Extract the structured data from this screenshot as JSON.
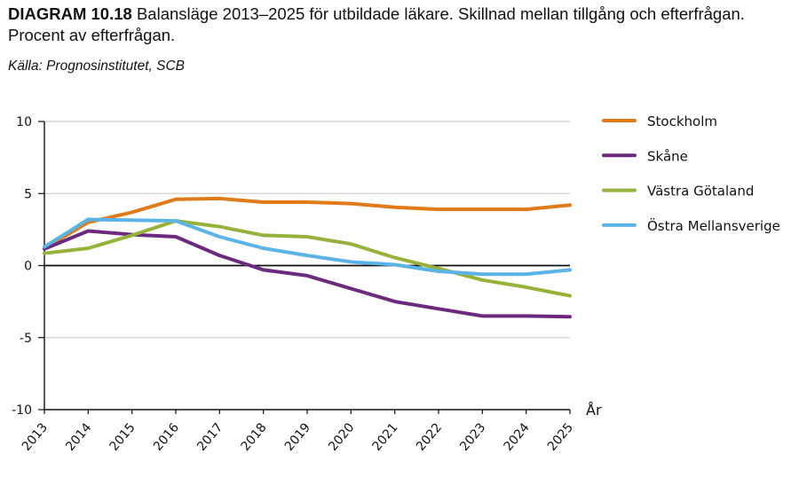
{
  "header": {
    "diagram_label": "DIAGRAM 10.18",
    "title_text": " Balansläge 2013–2025 för utbildade läkare. Skillnad mellan tillgång och efterfrågan. Procent av efterfrågan.",
    "source": "Källa: Prognosinstitutet, SCB"
  },
  "chart_data": {
    "type": "line",
    "title": "Balansläge 2013–2025 för utbildade läkare. Skillnad mellan tillgång och efterfrågan. Procent av efterfrågan.",
    "xlabel": "År",
    "ylabel": "",
    "x": [
      "2013",
      "2014",
      "2015",
      "2016",
      "2017",
      "2018",
      "2019",
      "2020",
      "2021",
      "2022",
      "2023",
      "2024",
      "2025"
    ],
    "ylim": [
      -10,
      10
    ],
    "yticks": [
      10,
      5,
      0,
      -5,
      -10
    ],
    "ytick_labels": [
      "10",
      "5",
      "0",
      "-5",
      "-10"
    ],
    "grid": true,
    "legend_position": "right",
    "series": [
      {
        "name": "Stockholm",
        "color": "#E07B1A",
        "values": [
          1.2,
          3.0,
          3.7,
          4.6,
          4.65,
          4.4,
          4.4,
          4.3,
          4.05,
          3.9,
          3.9,
          3.9,
          4.2
        ]
      },
      {
        "name": "Skåne",
        "color": "#6B2A7E",
        "values": [
          1.15,
          2.4,
          2.15,
          2.0,
          0.7,
          -0.3,
          -0.7,
          -1.6,
          -2.5,
          -3.0,
          -3.5,
          -3.5,
          -3.55
        ]
      },
      {
        "name": "Västra Götaland",
        "color": "#96B23A",
        "values": [
          0.85,
          1.2,
          2.1,
          3.1,
          2.7,
          2.1,
          2.0,
          1.5,
          0.55,
          -0.2,
          -1.0,
          -1.5,
          -2.1
        ]
      },
      {
        "name": "Östra Mellansverige",
        "color": "#5BB3E6",
        "values": [
          1.3,
          3.2,
          3.15,
          3.1,
          2.0,
          1.2,
          0.7,
          0.25,
          0.06,
          -0.4,
          -0.6,
          -0.6,
          -0.3
        ]
      }
    ]
  }
}
